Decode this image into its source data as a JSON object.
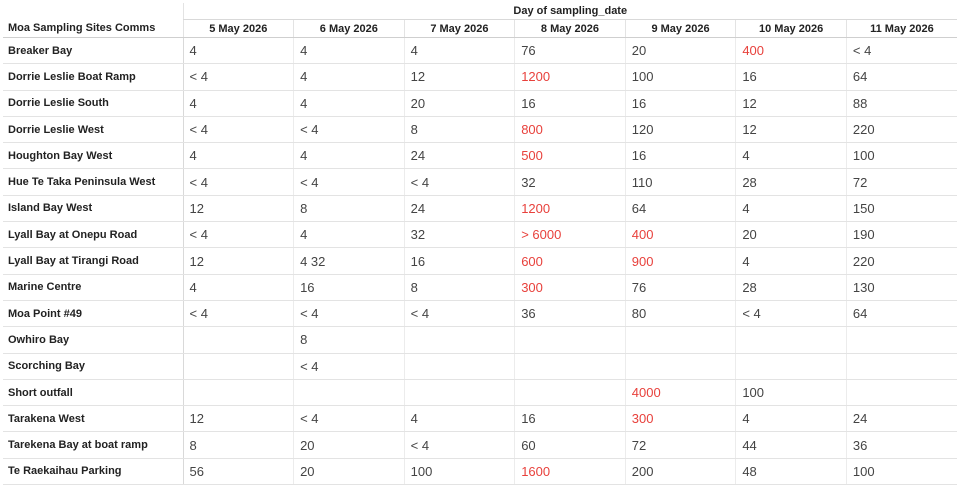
{
  "table": {
    "group_header": "Day of sampling_date",
    "row_header": "Moa Sampling Sites Comms",
    "columns": [
      "5 May 2026",
      "6 May 2026",
      "7 May 2026",
      "8 May 2026",
      "9 May 2026",
      "10 May 2026",
      "11 May 2026"
    ],
    "highlight_color": "#e8413c",
    "rows": [
      {
        "site": "Breaker Bay",
        "cells": [
          {
            "v": "4",
            "h": false
          },
          {
            "v": "4",
            "h": false
          },
          {
            "v": "4",
            "h": false
          },
          {
            "v": "76",
            "h": false
          },
          {
            "v": "20",
            "h": false
          },
          {
            "v": "400",
            "h": true
          },
          {
            "v": "< 4",
            "h": false
          }
        ]
      },
      {
        "site": "Dorrie Leslie Boat Ramp",
        "cells": [
          {
            "v": "< 4",
            "h": false
          },
          {
            "v": "4",
            "h": false
          },
          {
            "v": "12",
            "h": false
          },
          {
            "v": "1200",
            "h": true
          },
          {
            "v": "100",
            "h": false
          },
          {
            "v": "16",
            "h": false
          },
          {
            "v": "64",
            "h": false
          }
        ]
      },
      {
        "site": "Dorrie Leslie South",
        "cells": [
          {
            "v": "4",
            "h": false
          },
          {
            "v": "4",
            "h": false
          },
          {
            "v": "20",
            "h": false
          },
          {
            "v": "16",
            "h": false
          },
          {
            "v": "16",
            "h": false
          },
          {
            "v": "12",
            "h": false
          },
          {
            "v": "88",
            "h": false
          }
        ]
      },
      {
        "site": "Dorrie Leslie West",
        "cells": [
          {
            "v": "< 4",
            "h": false
          },
          {
            "v": "< 4",
            "h": false
          },
          {
            "v": "8",
            "h": false
          },
          {
            "v": "800",
            "h": true
          },
          {
            "v": "120",
            "h": false
          },
          {
            "v": "12",
            "h": false
          },
          {
            "v": "220",
            "h": false
          }
        ]
      },
      {
        "site": "Houghton Bay West",
        "cells": [
          {
            "v": "4",
            "h": false
          },
          {
            "v": "4",
            "h": false
          },
          {
            "v": "24",
            "h": false
          },
          {
            "v": "500",
            "h": true
          },
          {
            "v": "16",
            "h": false
          },
          {
            "v": "4",
            "h": false
          },
          {
            "v": "100",
            "h": false
          }
        ]
      },
      {
        "site": "Hue Te Taka Peninsula West",
        "cells": [
          {
            "v": "< 4",
            "h": false
          },
          {
            "v": "< 4",
            "h": false
          },
          {
            "v": "< 4",
            "h": false
          },
          {
            "v": "32",
            "h": false
          },
          {
            "v": "110",
            "h": false
          },
          {
            "v": "28",
            "h": false
          },
          {
            "v": "72",
            "h": false
          }
        ]
      },
      {
        "site": "Island Bay West",
        "cells": [
          {
            "v": "12",
            "h": false
          },
          {
            "v": "8",
            "h": false
          },
          {
            "v": "24",
            "h": false
          },
          {
            "v": "1200",
            "h": true
          },
          {
            "v": "64",
            "h": false
          },
          {
            "v": "4",
            "h": false
          },
          {
            "v": "150",
            "h": false
          }
        ]
      },
      {
        "site": "Lyall Bay at Onepu Road",
        "cells": [
          {
            "v": "< 4",
            "h": false
          },
          {
            "v": "4",
            "h": false
          },
          {
            "v": "32",
            "h": false
          },
          {
            "v": "> 6000",
            "h": true
          },
          {
            "v": "400",
            "h": true
          },
          {
            "v": "20",
            "h": false
          },
          {
            "v": "190",
            "h": false
          }
        ]
      },
      {
        "site": "Lyall Bay at Tirangi Road",
        "cells": [
          {
            "v": "12",
            "h": false
          },
          {
            "v": "4 32",
            "h": false
          },
          {
            "v": "16",
            "h": false
          },
          {
            "v": "600",
            "h": true
          },
          {
            "v": "900",
            "h": true
          },
          {
            "v": "4",
            "h": false
          },
          {
            "v": "220",
            "h": false
          }
        ]
      },
      {
        "site": "Marine Centre",
        "cells": [
          {
            "v": "4",
            "h": false
          },
          {
            "v": "16",
            "h": false
          },
          {
            "v": "8",
            "h": false
          },
          {
            "v": "300",
            "h": true
          },
          {
            "v": "76",
            "h": false
          },
          {
            "v": "28",
            "h": false
          },
          {
            "v": "130",
            "h": false
          }
        ]
      },
      {
        "site": "Moa Point #49",
        "cells": [
          {
            "v": "< 4",
            "h": false
          },
          {
            "v": "< 4",
            "h": false
          },
          {
            "v": "< 4",
            "h": false
          },
          {
            "v": "36",
            "h": false
          },
          {
            "v": "80",
            "h": false
          },
          {
            "v": "< 4",
            "h": false
          },
          {
            "v": "64",
            "h": false
          }
        ]
      },
      {
        "site": "Owhiro Bay",
        "cells": [
          {
            "v": "",
            "h": false
          },
          {
            "v": "8",
            "h": false
          },
          {
            "v": "",
            "h": false
          },
          {
            "v": "",
            "h": false
          },
          {
            "v": "",
            "h": false
          },
          {
            "v": "",
            "h": false
          },
          {
            "v": "",
            "h": false
          }
        ]
      },
      {
        "site": "Scorching Bay",
        "cells": [
          {
            "v": "",
            "h": false
          },
          {
            "v": "< 4",
            "h": false
          },
          {
            "v": "",
            "h": false
          },
          {
            "v": "",
            "h": false
          },
          {
            "v": "",
            "h": false
          },
          {
            "v": "",
            "h": false
          },
          {
            "v": "",
            "h": false
          }
        ]
      },
      {
        "site": "Short outfall",
        "cells": [
          {
            "v": "",
            "h": false
          },
          {
            "v": "",
            "h": false
          },
          {
            "v": "",
            "h": false
          },
          {
            "v": "",
            "h": false
          },
          {
            "v": "4000",
            "h": true
          },
          {
            "v": "100",
            "h": false
          },
          {
            "v": "",
            "h": false
          }
        ]
      },
      {
        "site": "Tarakena West",
        "cells": [
          {
            "v": "12",
            "h": false
          },
          {
            "v": "< 4",
            "h": false
          },
          {
            "v": "4",
            "h": false
          },
          {
            "v": "16",
            "h": false
          },
          {
            "v": "300",
            "h": true
          },
          {
            "v": "4",
            "h": false
          },
          {
            "v": "24",
            "h": false
          }
        ]
      },
      {
        "site": "Tarekena Bay at boat ramp",
        "cells": [
          {
            "v": "8",
            "h": false
          },
          {
            "v": "20",
            "h": false
          },
          {
            "v": "< 4",
            "h": false
          },
          {
            "v": "60",
            "h": false
          },
          {
            "v": "72",
            "h": false
          },
          {
            "v": "44",
            "h": false
          },
          {
            "v": "36",
            "h": false
          }
        ]
      },
      {
        "site": "Te Raekaihau Parking",
        "cells": [
          {
            "v": "56",
            "h": false
          },
          {
            "v": "20",
            "h": false
          },
          {
            "v": "100",
            "h": false
          },
          {
            "v": "1600",
            "h": true
          },
          {
            "v": "200",
            "h": false
          },
          {
            "v": "48",
            "h": false
          },
          {
            "v": "100",
            "h": false
          }
        ]
      }
    ]
  }
}
